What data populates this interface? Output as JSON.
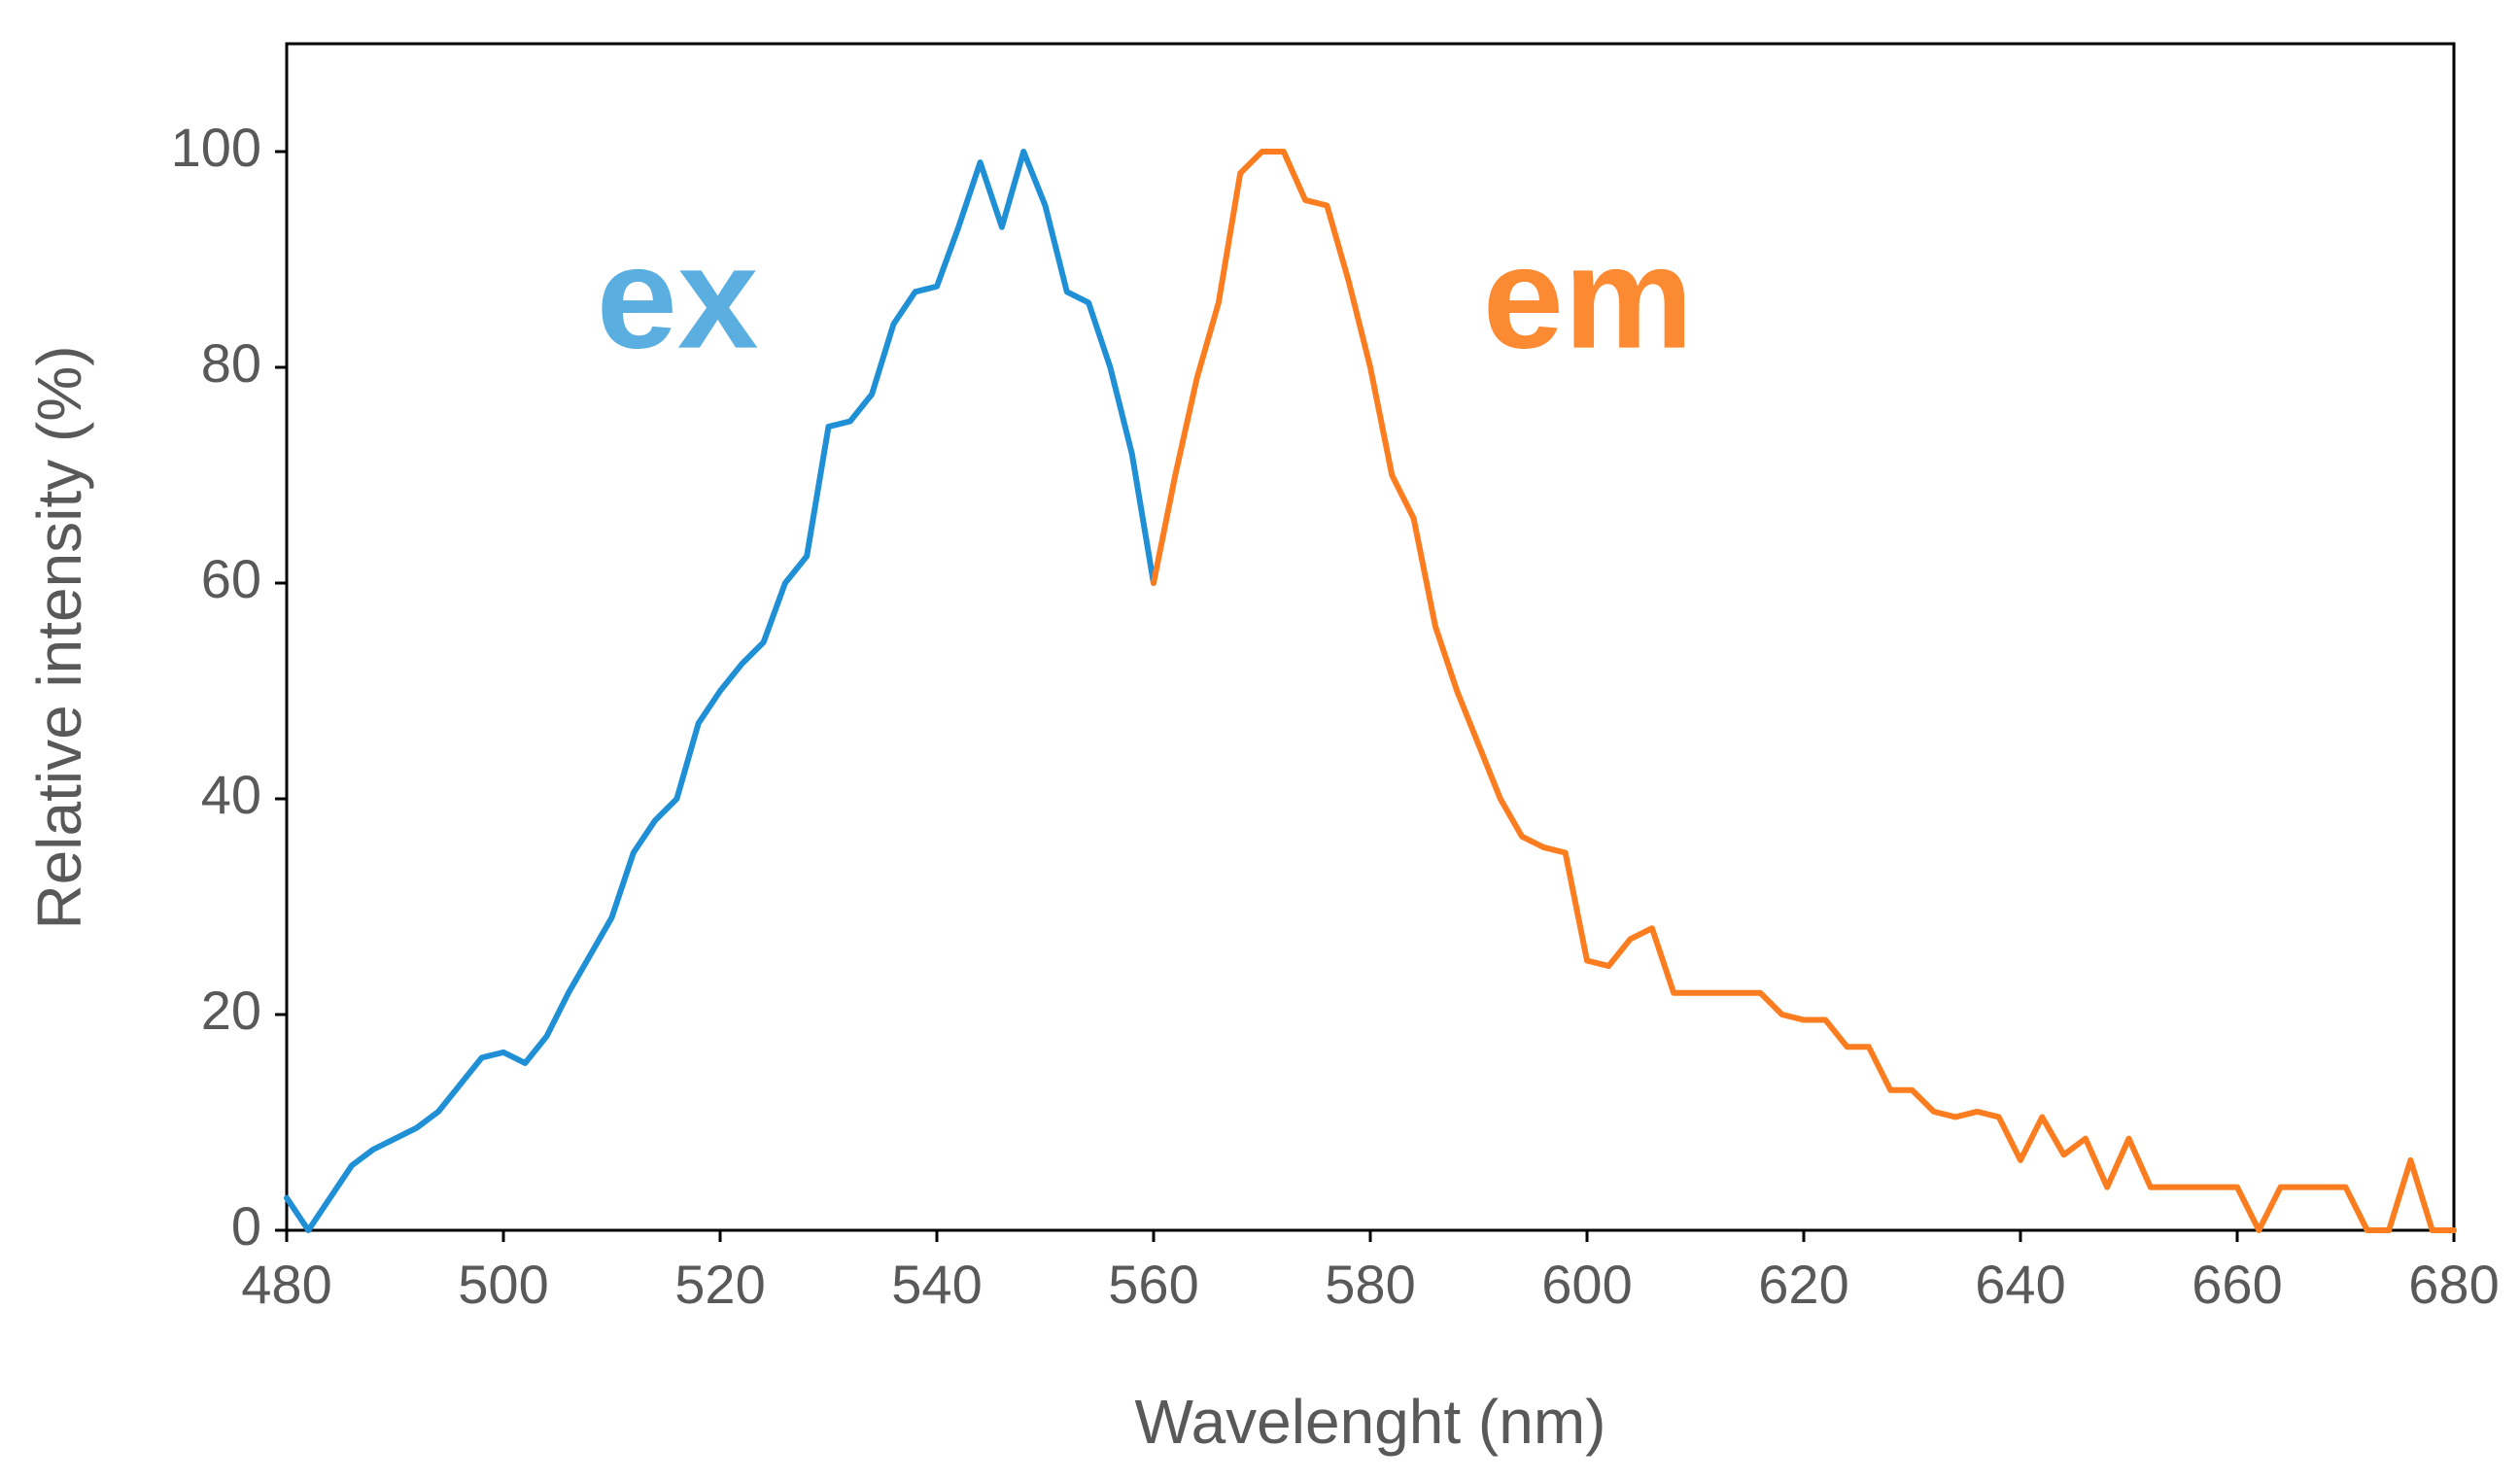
{
  "chart_data": {
    "type": "line",
    "x_label": "Wavelenght (nm)",
    "y_label": "Relative intensity (%)",
    "xlim": [
      480,
      680
    ],
    "xticks": [
      480,
      500,
      520,
      540,
      560,
      580,
      600,
      620,
      640,
      660,
      680
    ],
    "ylim": [
      0,
      110
    ],
    "yticks": [
      0,
      20,
      40,
      60,
      80,
      100
    ],
    "grid": false,
    "series": [
      {
        "name": "ex",
        "color": "#1f8fd6",
        "label_color": "#5aaee0",
        "x": [
          480,
          482,
          484,
          486,
          488,
          490,
          492,
          494,
          496,
          498,
          500,
          502,
          504,
          506,
          508,
          510,
          512,
          514,
          516,
          518,
          520,
          522,
          524,
          526,
          528,
          530,
          532,
          534,
          536,
          538,
          540,
          542,
          544,
          546,
          548,
          550,
          552,
          554,
          556,
          558,
          560
        ],
        "values": [
          3,
          0,
          3,
          6,
          7.5,
          8.5,
          9.5,
          11,
          13.5,
          16,
          16.5,
          15.5,
          18,
          22,
          25.5,
          29,
          35,
          38,
          40,
          47,
          50,
          52.5,
          54.5,
          60,
          62.5,
          74.5,
          75,
          77.5,
          84,
          87,
          87.5,
          93,
          99,
          93,
          100,
          95,
          87,
          86,
          80,
          72,
          60
        ]
      },
      {
        "name": "em",
        "color": "#fb7d1f",
        "label_color": "#fb8a32",
        "x": [
          560,
          562,
          564,
          566,
          568,
          570,
          572,
          574,
          576,
          578,
          580,
          582,
          584,
          586,
          588,
          590,
          592,
          594,
          596,
          598,
          600,
          602,
          604,
          606,
          608,
          610,
          612,
          614,
          616,
          618,
          620,
          622,
          624,
          626,
          628,
          630,
          632,
          634,
          636,
          638,
          640,
          642,
          644,
          646,
          648,
          650,
          652,
          654,
          656,
          658,
          660,
          662,
          664,
          666,
          668,
          670,
          672,
          674,
          676,
          678,
          680
        ],
        "values": [
          60,
          70,
          79,
          86,
          98,
          100,
          100,
          95.5,
          95,
          88,
          80,
          70,
          66,
          56,
          50,
          45,
          40,
          36.5,
          35.5,
          35,
          25,
          24.5,
          27,
          28,
          22,
          22,
          22,
          22,
          22,
          20,
          19.5,
          19.5,
          17,
          17,
          13,
          13,
          11,
          10.5,
          11,
          10.5,
          6.5,
          10.5,
          7,
          8.5,
          4,
          8.5,
          4,
          4,
          4,
          4,
          4,
          0,
          4,
          4,
          4,
          4,
          0,
          0,
          6.5,
          0,
          0
        ]
      }
    ]
  }
}
